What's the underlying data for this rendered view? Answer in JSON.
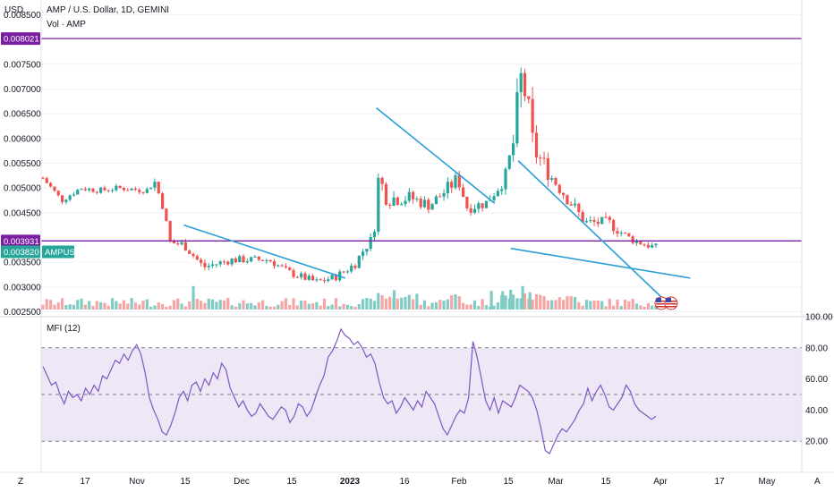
{
  "header": {
    "title": "AMP / U.S. Dollar, 1D, GEMINI",
    "volume_label": "Vol · AMP",
    "currency": "USD"
  },
  "indicator": {
    "title": "MFI (12)"
  },
  "corner_labels": {
    "left": "Z",
    "right": "A"
  },
  "colors": {
    "up": "#26a69a",
    "down": "#ef5350",
    "trendline": "#2a9fd6",
    "level": "#7b1fa2",
    "mfi_line": "#7e57c2",
    "mfi_band": "#ede7f6",
    "last_price": "#26a69a"
  },
  "chart_data": [
    {
      "type": "candlestick",
      "title": "AMP / U.S. Dollar, 1D, GEMINI",
      "ylabel": "USD",
      "ylim": [
        0.0024,
        0.0088
      ],
      "y_ticks": [
        "0.008500",
        "0.007500",
        "0.007000",
        "0.006500",
        "0.006000",
        "0.005500",
        "0.005000",
        "0.004500",
        "0.003500",
        "0.003000",
        "0.002500"
      ],
      "x_ticks": [
        "17",
        "Nov",
        "15",
        "Dec",
        "15",
        "2023",
        "16",
        "Feb",
        "15",
        "Mar",
        "15",
        "Apr",
        "17",
        "May"
      ],
      "levels": [
        {
          "label": "0.008021",
          "value": 0.008021
        },
        {
          "label": "0.003931",
          "value": 0.003931
        }
      ],
      "last_price": {
        "symbol": "AMPUSD",
        "label": "0.003820",
        "value": 0.00382
      },
      "trendlines": [
        {
          "x1": 0.1495,
          "y1": 0.00425,
          "x2": 0.3205,
          "y2": 0.00318
        },
        {
          "x1": 0.3535,
          "y1": 0.00662,
          "x2": 0.479,
          "y2": 0.00469
        },
        {
          "x1": 0.504,
          "y1": 0.00555,
          "x2": 0.666,
          "y2": 0.00261
        },
        {
          "x1": 0.496,
          "y1": 0.00378,
          "x2": 0.6865,
          "y2": 0.00318
        }
      ],
      "series_keypoints": [
        [
          0.0,
          0.0052,
          8e-05
        ],
        [
          0.02,
          0.00475,
          6e-05
        ],
        [
          0.04,
          0.005,
          6e-05
        ],
        [
          0.06,
          0.00495,
          6e-05
        ],
        [
          0.08,
          0.005,
          6e-05
        ],
        [
          0.11,
          0.00495,
          6e-05
        ],
        [
          0.118,
          0.00515,
          0.0001
        ],
        [
          0.128,
          0.0046,
          0.0001
        ],
        [
          0.134,
          0.0039,
          0.00012
        ],
        [
          0.15,
          0.00385,
          0.0001
        ],
        [
          0.17,
          0.0034,
          0.0001
        ],
        [
          0.2,
          0.00355,
          8e-05
        ],
        [
          0.24,
          0.00355,
          8e-05
        ],
        [
          0.26,
          0.0033,
          8e-05
        ],
        [
          0.29,
          0.0031,
          8e-05
        ],
        [
          0.31,
          0.0032,
          8e-05
        ],
        [
          0.33,
          0.00345,
          0.0001
        ],
        [
          0.345,
          0.0039,
          0.00012
        ],
        [
          0.35,
          0.00395,
          0.00012
        ],
        [
          0.356,
          0.0052,
          0.0003
        ],
        [
          0.365,
          0.0048,
          0.00018
        ],
        [
          0.39,
          0.0048,
          0.00015
        ],
        [
          0.41,
          0.00465,
          0.00012
        ],
        [
          0.43,
          0.005,
          0.00015
        ],
        [
          0.44,
          0.0052,
          0.00015
        ],
        [
          0.45,
          0.0046,
          0.00012
        ],
        [
          0.47,
          0.0047,
          0.00012
        ],
        [
          0.49,
          0.0052,
          0.00015
        ],
        [
          0.5,
          0.006,
          0.0003
        ],
        [
          0.506,
          0.0072,
          0.0005
        ],
        [
          0.512,
          0.0069,
          0.0004
        ],
        [
          0.52,
          0.0058,
          0.0003
        ],
        [
          0.54,
          0.0052,
          0.00015
        ],
        [
          0.56,
          0.0047,
          0.00015
        ],
        [
          0.575,
          0.0043,
          0.00012
        ],
        [
          0.6,
          0.0043,
          0.00012
        ],
        [
          0.62,
          0.004,
          0.0001
        ],
        [
          0.64,
          0.00385,
          8e-05
        ],
        [
          0.65,
          0.0038,
          8e-05
        ]
      ],
      "volume_spikes": [
        [
          0.1595,
          0.00095
        ],
        [
          0.3725,
          0.00078
        ],
        [
          0.4755,
          0.00075
        ],
        [
          0.5087,
          0.00095
        ],
        [
          0.503,
          0.00046
        ],
        [
          0.5164,
          0.0007
        ],
        [
          0.4875,
          0.00074
        ],
        [
          0.496,
          0.0008
        ]
      ]
    },
    {
      "type": "line",
      "title": "MFI (12)",
      "ylim": [
        0,
        100
      ],
      "y_ticks": [
        "100.00",
        "80.00",
        "60.00",
        "40.00",
        "20.00"
      ],
      "band": [
        20,
        80
      ],
      "levels": [
        80,
        50,
        20
      ],
      "values": [
        68,
        62,
        56,
        58,
        50,
        44,
        52,
        48,
        50,
        46,
        54,
        50,
        56,
        52,
        62,
        60,
        66,
        72,
        70,
        76,
        72,
        78,
        82,
        76,
        64,
        48,
        40,
        34,
        26,
        24,
        30,
        38,
        48,
        52,
        46,
        56,
        58,
        52,
        60,
        56,
        64,
        60,
        70,
        66,
        54,
        48,
        42,
        46,
        40,
        36,
        38,
        44,
        40,
        36,
        34,
        38,
        42,
        40,
        32,
        36,
        44,
        42,
        36,
        40,
        48,
        56,
        62,
        74,
        78,
        84,
        92,
        88,
        86,
        82,
        84,
        80,
        74,
        76,
        70,
        58,
        48,
        44,
        46,
        38,
        42,
        48,
        44,
        40,
        46,
        42,
        52,
        48,
        44,
        36,
        28,
        24,
        30,
        36,
        40,
        38,
        48,
        84,
        74,
        60,
        46,
        40,
        48,
        38,
        46,
        44,
        42,
        48,
        56,
        54,
        52,
        48,
        40,
        28,
        14,
        12,
        18,
        24,
        28,
        26,
        30,
        34,
        40,
        44,
        54,
        46,
        52,
        56,
        50,
        42,
        40,
        44,
        48,
        56,
        52,
        44,
        40,
        38,
        36,
        34,
        36
      ]
    }
  ]
}
